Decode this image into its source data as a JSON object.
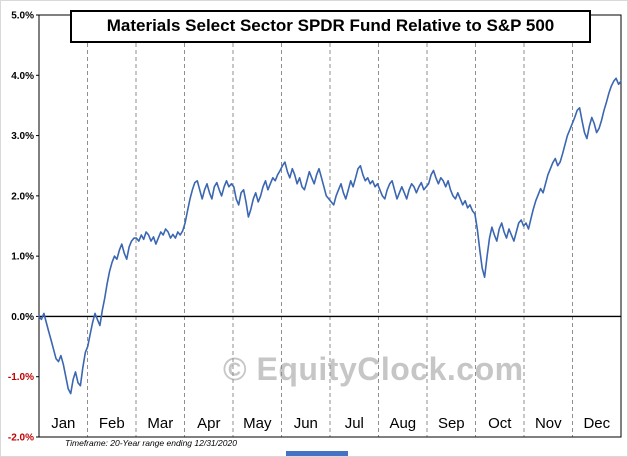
{
  "title": "Materials Select Sector SPDR Fund Relative to S&P 500",
  "watermark": "© EquityClock.com",
  "footnote": "Timeframe: 20-Year range ending 12/31/2020",
  "colors": {
    "line": "#3b66b1",
    "tick_label": "#000000",
    "negative_tick_label": "#c00000",
    "gridline": "#8f8f8f",
    "zero_line": "#000000",
    "watermark": "#c6c6c6",
    "bottom_bar": "#4472c4"
  },
  "chart_data": {
    "type": "line",
    "title": "Materials Select Sector SPDR Fund Relative to S&P 500",
    "xlabel": "",
    "ylabel": "",
    "months": [
      "Jan",
      "Feb",
      "Mar",
      "Apr",
      "May",
      "Jun",
      "Jul",
      "Aug",
      "Sep",
      "Oct",
      "Nov",
      "Dec"
    ],
    "yticks": [
      5.0,
      4.0,
      3.0,
      2.0,
      1.0,
      0.0,
      -1.0,
      -2.0
    ],
    "ytick_labels": [
      "5.0%",
      "4.0%",
      "3.0%",
      "2.0%",
      "1.0%",
      "0.0%",
      "-1.0%",
      "-2.0%"
    ],
    "ylim": [
      -2.0,
      5.0
    ],
    "grid": "vertical-dashed-monthly",
    "legend": "none",
    "line_color": "#3b66b1",
    "tick_color": "#000000",
    "negative_tick_color": "#c00000",
    "gridline_color": "#8f8f8f",
    "values": [
      0.0,
      -0.05,
      0.05,
      -0.1,
      -0.25,
      -0.4,
      -0.55,
      -0.7,
      -0.75,
      -0.65,
      -0.8,
      -1.0,
      -1.2,
      -1.28,
      -1.05,
      -0.92,
      -1.1,
      -1.15,
      -0.85,
      -0.6,
      -0.5,
      -0.3,
      -0.1,
      0.05,
      -0.05,
      -0.15,
      0.1,
      0.3,
      0.55,
      0.75,
      0.9,
      1.0,
      0.95,
      1.1,
      1.2,
      1.05,
      0.95,
      1.15,
      1.25,
      1.3,
      1.3,
      1.25,
      1.35,
      1.28,
      1.4,
      1.35,
      1.25,
      1.32,
      1.2,
      1.3,
      1.4,
      1.35,
      1.45,
      1.4,
      1.3,
      1.36,
      1.3,
      1.4,
      1.35,
      1.42,
      1.55,
      1.75,
      1.95,
      2.1,
      2.22,
      2.25,
      2.1,
      1.95,
      2.1,
      2.2,
      2.05,
      1.95,
      2.15,
      2.22,
      2.1,
      2.0,
      2.15,
      2.25,
      2.15,
      2.2,
      2.15,
      1.95,
      1.85,
      2.05,
      2.1,
      1.9,
      1.65,
      1.78,
      1.95,
      2.05,
      1.9,
      2.0,
      2.15,
      2.25,
      2.1,
      2.2,
      2.3,
      2.25,
      2.35,
      2.42,
      2.5,
      2.56,
      2.4,
      2.3,
      2.45,
      2.35,
      2.2,
      2.3,
      2.15,
      2.1,
      2.25,
      2.4,
      2.3,
      2.2,
      2.35,
      2.45,
      2.3,
      2.15,
      2.0,
      1.95,
      1.9,
      1.85,
      2.0,
      2.1,
      2.2,
      2.05,
      1.95,
      2.1,
      2.25,
      2.15,
      2.3,
      2.45,
      2.5,
      2.35,
      2.25,
      2.3,
      2.2,
      2.25,
      2.15,
      2.2,
      2.1,
      2.0,
      1.95,
      2.1,
      2.2,
      2.25,
      2.1,
      1.95,
      2.05,
      2.15,
      2.05,
      1.95,
      2.1,
      2.2,
      2.15,
      2.05,
      2.15,
      2.22,
      2.1,
      2.15,
      2.2,
      2.35,
      2.42,
      2.3,
      2.2,
      2.3,
      2.25,
      2.15,
      2.25,
      2.1,
      2.0,
      1.95,
      2.05,
      1.95,
      1.85,
      1.92,
      1.8,
      1.85,
      1.75,
      1.7,
      1.45,
      1.1,
      0.8,
      0.65,
      1.0,
      1.3,
      1.48,
      1.35,
      1.25,
      1.45,
      1.55,
      1.4,
      1.3,
      1.45,
      1.35,
      1.25,
      1.4,
      1.55,
      1.6,
      1.5,
      1.55,
      1.45,
      1.62,
      1.78,
      1.92,
      2.02,
      2.12,
      2.05,
      2.2,
      2.35,
      2.45,
      2.55,
      2.62,
      2.5,
      2.56,
      2.7,
      2.85,
      3.0,
      3.1,
      3.2,
      3.3,
      3.42,
      3.46,
      3.25,
      3.05,
      2.95,
      3.15,
      3.3,
      3.2,
      3.05,
      3.12,
      3.25,
      3.42,
      3.55,
      3.7,
      3.82,
      3.9,
      3.95,
      3.85,
      3.9
    ]
  }
}
